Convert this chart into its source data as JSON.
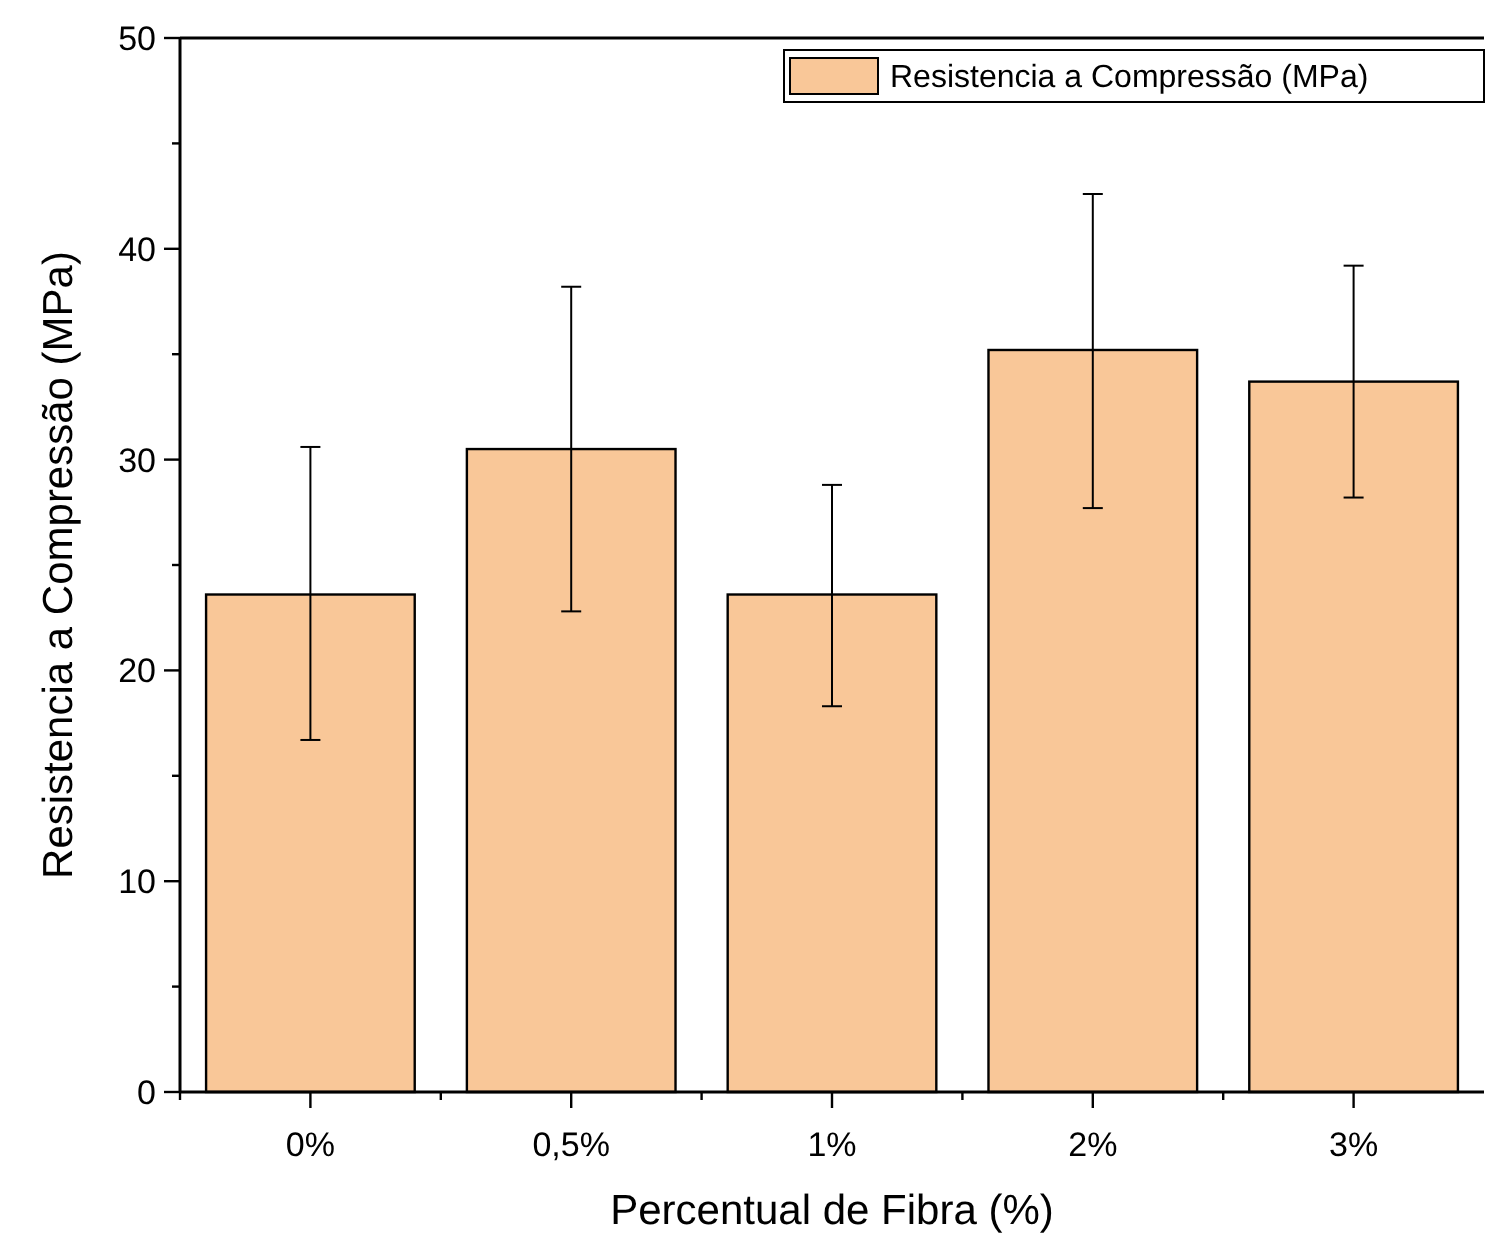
{
  "chart_data": {
    "type": "bar",
    "xlabel": "Percentual de Fibra (%)",
    "ylabel": "Resistencia a Compressão (MPa)",
    "categories": [
      "0%",
      "0,5%",
      "1%",
      "2%",
      "3%"
    ],
    "series": [
      {
        "name": "Resistencia a Compressão (MPa)",
        "color": "#f9c798",
        "values": [
          23.6,
          30.5,
          23.6,
          35.2,
          33.7
        ],
        "errors": [
          [
            16.7,
            30.6
          ],
          [
            22.8,
            38.2
          ],
          [
            18.3,
            28.8
          ],
          [
            27.7,
            42.6
          ],
          [
            28.2,
            39.2
          ]
        ]
      }
    ],
    "ylim": [
      0,
      50
    ],
    "yticks": [
      0,
      10,
      20,
      30,
      40,
      50
    ],
    "grid": false,
    "legend": "top right"
  }
}
